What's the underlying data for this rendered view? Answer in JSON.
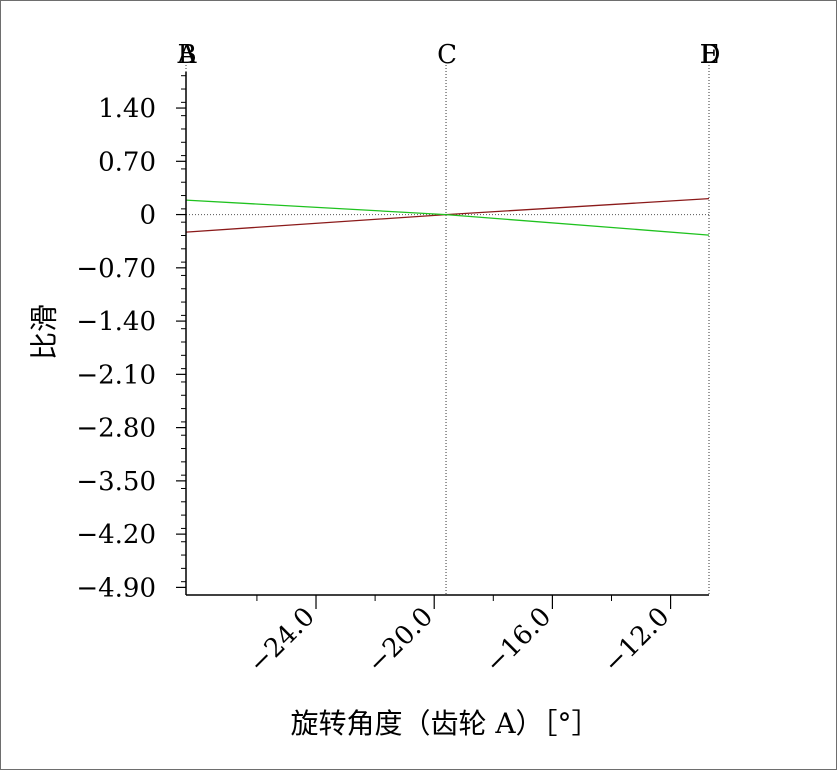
{
  "chart_data": {
    "type": "line",
    "title": "",
    "xlabel": "旋转角度（齿轮 A）［°］",
    "ylabel": "比滑",
    "xlim": [
      -28.4,
      -10.7
    ],
    "ylim": [
      -5.0,
      1.9
    ],
    "x_ticks": [
      -24.0,
      -20.0,
      -16.0,
      -12.0
    ],
    "x_tick_labels": [
      "−24.0",
      "−20.0",
      "−16.0",
      "−12.0"
    ],
    "y_ticks": [
      1.4,
      0.7,
      0,
      -0.7,
      -1.4,
      -2.1,
      -2.8,
      -3.5,
      -4.2,
      -4.9
    ],
    "y_tick_labels": [
      "1.40",
      "0.70",
      "0",
      "−0.70",
      "−1.40",
      "−2.10",
      "−2.80",
      "−3.50",
      "−4.20",
      "−4.90"
    ],
    "grid": false,
    "reference_lines": [
      {
        "label": "A",
        "x": -28.4
      },
      {
        "label": "B",
        "x": -28.4
      },
      {
        "label": "C",
        "x": -19.6
      },
      {
        "label": "D",
        "x": -10.7
      },
      {
        "label": "E",
        "x": -10.7
      }
    ],
    "series": [
      {
        "color": "#8b1a1a",
        "x": [
          -28.4,
          -19.6,
          -10.7
        ],
        "y": [
          -0.23,
          0.0,
          0.21
        ]
      },
      {
        "color": "#1fc21f",
        "x": [
          -28.4,
          -19.6,
          -10.7
        ],
        "y": [
          0.19,
          0.0,
          -0.27
        ]
      }
    ]
  }
}
